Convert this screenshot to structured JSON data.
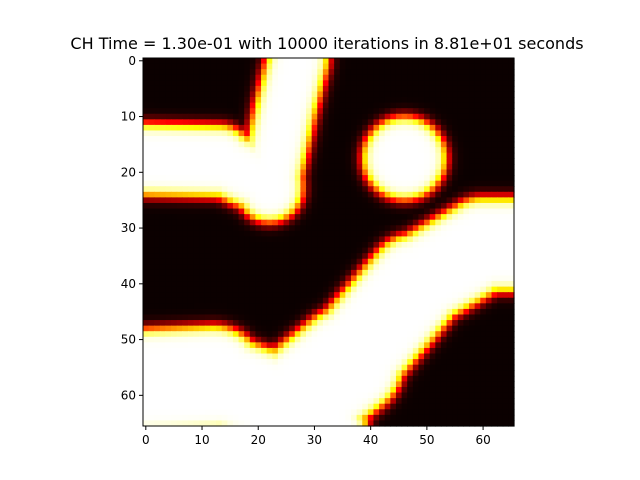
{
  "chart_data": {
    "type": "heatmap",
    "title": "CH Time = 1.30e-01 with 10000 iterations in 8.81e+01 seconds",
    "xlabel": "",
    "ylabel": "",
    "grid_size": 66,
    "xlim": [
      -0.5,
      65.5
    ],
    "ylim": [
      65.5,
      -0.5
    ],
    "x_ticks": [
      0,
      10,
      20,
      30,
      40,
      50,
      60
    ],
    "y_ticks": [
      0,
      10,
      20,
      30,
      40,
      50,
      60
    ],
    "x_tick_labels": [
      "0",
      "10",
      "20",
      "30",
      "40",
      "50",
      "60"
    ],
    "y_tick_labels": [
      "0",
      "10",
      "20",
      "30",
      "40",
      "50",
      "60"
    ],
    "colormap": "hot",
    "value_range": [
      -1,
      1
    ],
    "grid": false
  }
}
